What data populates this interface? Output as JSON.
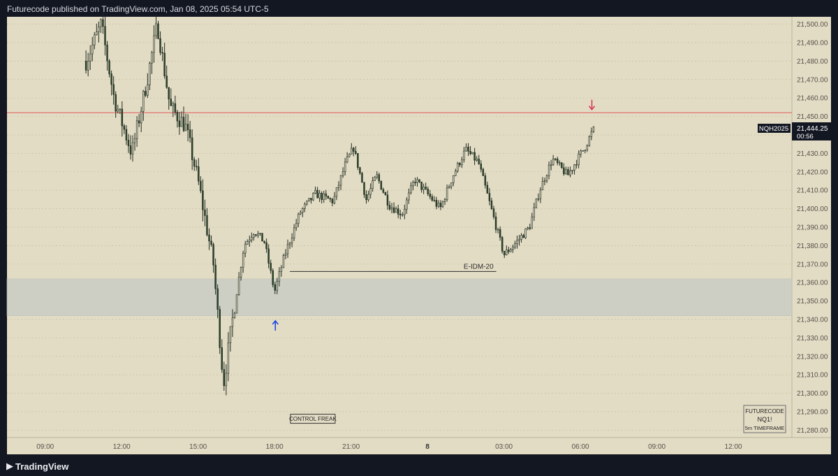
{
  "header": {
    "title": "Futurecode published on TradingView.com, Jan 08, 2025 05:54 UTC-5"
  },
  "footer": {
    "brand": "TradingView"
  },
  "colors": {
    "background": "#e3dcc5",
    "up_candle": "#dcd8c0",
    "down_candle": "#2f4a2c",
    "wick": "#1f2a1f",
    "resistance_line": "#e05a5a",
    "zone": "#cdcfc5",
    "arrow_up": "#1a49e0",
    "arrow_down": "#d43b5a",
    "axis_bg": "#e3dcc5"
  },
  "chart_data": {
    "type": "candlestick",
    "symbol": "NQ1!",
    "timeframe": "5m",
    "y_ticks": [
      21280,
      21290,
      21300,
      21310,
      21320,
      21330,
      21340,
      21350,
      21360,
      21370,
      21380,
      21390,
      21400,
      21410,
      21420,
      21430,
      21440,
      21450,
      21460,
      21470,
      21480,
      21490,
      21500
    ],
    "y_tick_labels": [
      "21,280.00",
      "21,290.00",
      "21,300.00",
      "21,310.00",
      "21,320.00",
      "21,330.00",
      "21,340.00",
      "21,350.00",
      "21,360.00",
      "21,370.00",
      "21,380.00",
      "21,390.00",
      "21,400.00",
      "21,410.00",
      "21,420.00",
      "21,430.00",
      "21,440.00",
      "21,450.00",
      "21,460.00",
      "21,470.00",
      "21,480.00",
      "21,490.00",
      "21,500.00"
    ],
    "ylim": [
      21276,
      21504
    ],
    "x_ticks": [
      {
        "t": 9,
        "label": "09:00",
        "bold": false
      },
      {
        "t": 12,
        "label": "12:00",
        "bold": false
      },
      {
        "t": 15,
        "label": "15:00",
        "bold": false
      },
      {
        "t": 18,
        "label": "18:00",
        "bold": false
      },
      {
        "t": 21,
        "label": "21:00",
        "bold": false
      },
      {
        "t": 24,
        "label": "8",
        "bold": true
      },
      {
        "t": 27,
        "label": "03:00",
        "bold": false
      },
      {
        "t": 30,
        "label": "06:00",
        "bold": false
      },
      {
        "t": 33,
        "label": "09:00",
        "bold": false
      },
      {
        "t": 36,
        "label": "12:00",
        "bold": false
      }
    ],
    "xlim": [
      7.5,
      38.3
    ],
    "key_points": [
      {
        "t": 10.6,
        "p": 21480
      },
      {
        "t": 11.2,
        "p": 21500
      },
      {
        "t": 11.7,
        "p": 21460
      },
      {
        "t": 12.4,
        "p": 21430
      },
      {
        "t": 13.0,
        "p": 21470
      },
      {
        "t": 13.4,
        "p": 21500
      },
      {
        "t": 13.9,
        "p": 21455
      },
      {
        "t": 14.5,
        "p": 21445
      },
      {
        "t": 15.0,
        "p": 21415
      },
      {
        "t": 15.6,
        "p": 21370
      },
      {
        "t": 16.0,
        "p": 21305
      },
      {
        "t": 16.4,
        "p": 21345
      },
      {
        "t": 16.8,
        "p": 21380
      },
      {
        "t": 17.2,
        "p": 21388
      },
      {
        "t": 17.6,
        "p": 21382
      },
      {
        "t": 18.0,
        "p": 21355
      },
      {
        "t": 18.4,
        "p": 21375
      },
      {
        "t": 19.0,
        "p": 21398
      },
      {
        "t": 19.6,
        "p": 21408
      },
      {
        "t": 20.3,
        "p": 21404
      },
      {
        "t": 20.8,
        "p": 21425
      },
      {
        "t": 21.1,
        "p": 21433
      },
      {
        "t": 21.6,
        "p": 21405
      },
      {
        "t": 22.0,
        "p": 21418
      },
      {
        "t": 22.5,
        "p": 21402
      },
      {
        "t": 23.0,
        "p": 21397
      },
      {
        "t": 23.5,
        "p": 21416
      },
      {
        "t": 24.0,
        "p": 21408
      },
      {
        "t": 24.5,
        "p": 21400
      },
      {
        "t": 25.0,
        "p": 21418
      },
      {
        "t": 25.5,
        "p": 21432
      },
      {
        "t": 26.0,
        "p": 21425
      },
      {
        "t": 26.5,
        "p": 21400
      },
      {
        "t": 27.0,
        "p": 21375
      },
      {
        "t": 27.5,
        "p": 21382
      },
      {
        "t": 28.0,
        "p": 21390
      },
      {
        "t": 28.4,
        "p": 21410
      },
      {
        "t": 28.9,
        "p": 21427
      },
      {
        "t": 29.5,
        "p": 21418
      },
      {
        "t": 30.2,
        "p": 21434
      },
      {
        "t": 30.55,
        "p": 21444.25
      }
    ],
    "last_price": {
      "value": 21444.25,
      "label": "21,444.25",
      "countdown": "00:56",
      "symbol_tag": "NQH2025"
    },
    "resistance_line": {
      "price": 21452
    },
    "zone": {
      "low": 21342,
      "high": 21362
    },
    "idm_line": {
      "price": 21366,
      "t_start": 18.6,
      "t_end": 26.7,
      "label": "E-IDM-20"
    },
    "arrow_up": {
      "t": 18.03,
      "price": 21337
    },
    "arrow_down": {
      "t": 30.45,
      "price": 21456
    },
    "annotations": {
      "control_freak": {
        "t": 19.5,
        "price": 21286,
        "text": "CONTROL FREAK"
      },
      "info_box": {
        "lines": [
          "FUTURECODE",
          "NQ1!",
          "5m TIMEFRAME"
        ]
      }
    }
  }
}
